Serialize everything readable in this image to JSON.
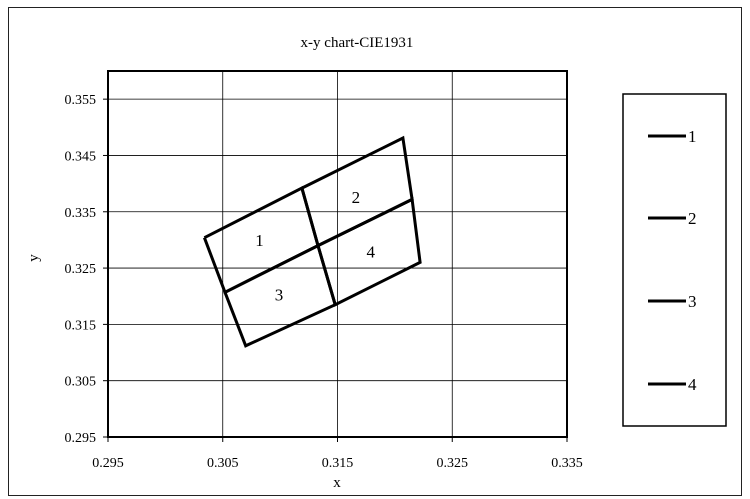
{
  "chart_data": {
    "type": "line",
    "title": "x-y chart-CIE1931",
    "xlabel": "x",
    "ylabel": "y",
    "xlim": [
      0.295,
      0.335
    ],
    "ylim": [
      0.295,
      0.36
    ],
    "xticks": [
      "0.295",
      "0.305",
      "0.315",
      "0.325",
      "0.335"
    ],
    "yticks": [
      "0.295",
      "0.305",
      "0.315",
      "0.325",
      "0.335",
      "0.345",
      "0.355"
    ],
    "xtick_values": [
      0.295,
      0.305,
      0.315,
      0.325,
      0.335
    ],
    "ytick_values": [
      0.295,
      0.305,
      0.315,
      0.325,
      0.335,
      0.345,
      0.355
    ],
    "grid": true,
    "legend_position": "right",
    "series": [
      {
        "name": "1",
        "x": [
          0.3034,
          0.3119,
          0.3133,
          0.3052,
          0.3034
        ],
        "y": [
          0.3304,
          0.3392,
          0.329,
          0.3207,
          0.3304
        ]
      },
      {
        "name": "2",
        "x": [
          0.3119,
          0.3207,
          0.3215,
          0.3133,
          0.3119
        ],
        "y": [
          0.3392,
          0.3481,
          0.3372,
          0.329,
          0.3392
        ]
      },
      {
        "name": "3",
        "x": [
          0.3052,
          0.3133,
          0.3148,
          0.307,
          0.3052
        ],
        "y": [
          0.3207,
          0.329,
          0.3185,
          0.3112,
          0.3207
        ]
      },
      {
        "name": "4",
        "x": [
          0.3133,
          0.3215,
          0.3222,
          0.3148,
          0.3133
        ],
        "y": [
          0.329,
          0.3372,
          0.326,
          0.3185,
          0.329
        ]
      }
    ],
    "region_labels": [
      {
        "text": "1",
        "x": 0.3082,
        "y": 0.33
      },
      {
        "text": "2",
        "x": 0.3166,
        "y": 0.3376
      },
      {
        "text": "3",
        "x": 0.3099,
        "y": 0.3203
      },
      {
        "text": "4",
        "x": 0.3179,
        "y": 0.3279
      }
    ],
    "colors": {
      "line": "#000000",
      "grid": "#000000"
    }
  }
}
